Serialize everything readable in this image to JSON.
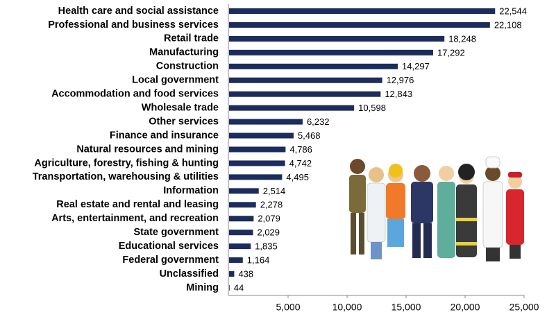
{
  "chart_data": {
    "type": "bar",
    "orientation": "horizontal",
    "color": "#1c2c5c",
    "categories": [
      "Health care and social assistance",
      "Professional and business services",
      "Retail trade",
      "Manufacturing",
      "Construction",
      "Local government",
      "Accommodation and food services",
      "Wholesale trade",
      "Other services",
      "Finance and insurance",
      "Natural resources and mining",
      "Agriculture, forestry, fishing & hunting",
      "Transportation, warehousing & utilities",
      "Information",
      "Real estate and rental and leasing",
      "Arts, entertainment, and recreation",
      "State government",
      "Educational services",
      "Federal government",
      "Unclassified",
      "Mining"
    ],
    "values": [
      22544,
      22108,
      18248,
      17292,
      14297,
      12976,
      12843,
      10598,
      6232,
      5468,
      4786,
      4742,
      4495,
      2514,
      2278,
      2079,
      2029,
      1835,
      1164,
      438,
      44
    ],
    "value_labels": [
      "22,544",
      "22,108",
      "18,248",
      "17,292",
      "14,297",
      "12,976",
      "12,843",
      "10,598",
      "6,232",
      "5,468",
      "4,786",
      "4,742",
      "4,495",
      "2,514",
      "2,278",
      "2,079",
      "2,029",
      "1,835",
      "1,164",
      "438",
      "44"
    ],
    "xlim": [
      0,
      25000
    ],
    "xticks": [
      {
        "value": 5000,
        "label": "5,000"
      },
      {
        "value": 10000,
        "label": "10,000"
      },
      {
        "value": 15000,
        "label": "15,000"
      },
      {
        "value": 20000,
        "label": "20,000"
      },
      {
        "value": 25000,
        "label": "25,000"
      }
    ]
  }
}
